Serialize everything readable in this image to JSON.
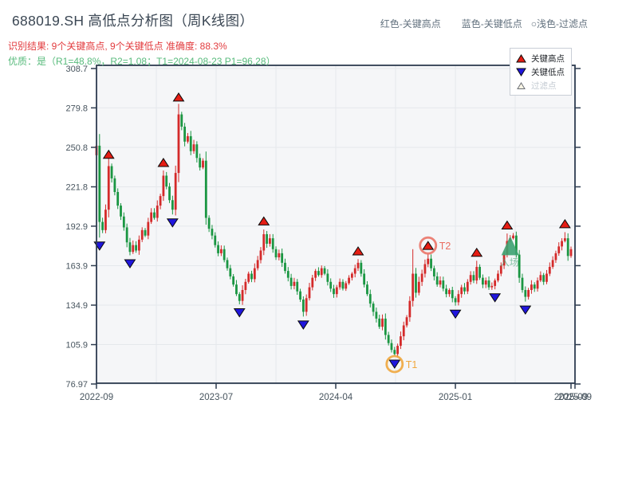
{
  "header": {
    "title": "688019.SH 高低点分析图（周K线图）",
    "subtitle_result": "识别结果: 9个关键高点, 9个关键低点  准确度: 88.3%",
    "subtitle_quality": "优质：是（R1=48.8%，R2=1.08；T1=2024-08-23 P1=96.28）",
    "inline_legend": [
      {
        "label": "红色-关键高点"
      },
      {
        "label": "蓝色-关键低点"
      },
      {
        "label": "○浅色-过滤点"
      }
    ]
  },
  "plot_legend": {
    "items": [
      {
        "label": "关键高点",
        "marker": "up-triangle",
        "fill": "#e51d14",
        "text_color": "#1f2328"
      },
      {
        "label": "关键低点",
        "marker": "down-triangle",
        "fill": "#1f16dd",
        "text_color": "#1f2328"
      },
      {
        "label": "过滤点",
        "marker": "hollow-up-triangle",
        "fill": "#faf5e6",
        "text_color": "#c3cad1"
      }
    ]
  },
  "chart_data": {
    "type": "candlestick",
    "symbol": "688019.SH",
    "period": "weekly",
    "accuracy": "88.3%",
    "y_ticks": [
      {
        "v": 308.7,
        "label": "308.7"
      },
      {
        "v": 279.8,
        "label": "279.8"
      },
      {
        "v": 250.8,
        "label": "250.8"
      },
      {
        "v": 221.8,
        "label": "221.8"
      },
      {
        "v": 192.9,
        "label": "192.9"
      },
      {
        "v": 163.9,
        "label": "163.9"
      },
      {
        "v": 134.9,
        "label": "134.9"
      },
      {
        "v": 105.9,
        "label": "105.9"
      },
      {
        "v": 76.97,
        "label": "76.97"
      }
    ],
    "x_ticks": [
      {
        "pos": 0,
        "label": "2022-09"
      },
      {
        "pos": 39.33,
        "label": "2023-07"
      },
      {
        "pos": 78.66,
        "label": "2024-04"
      },
      {
        "pos": 117.99,
        "label": "2025-01"
      },
      {
        "pos": 156,
        "label": "2025-09"
      },
      {
        "pos": 157.31,
        "label": "2025-09"
      }
    ],
    "x_grid_pos": [
      19.66,
      39.33,
      59.0,
      78.66,
      98.32,
      117.99,
      137.65
    ],
    "first_open": 245,
    "weekly_closes": [
      252,
      196,
      190,
      205,
      237,
      228,
      218,
      208,
      200,
      192,
      181,
      174,
      179,
      175,
      183,
      190,
      186,
      196,
      203,
      199,
      208,
      215,
      230,
      222,
      212,
      205,
      232,
      275,
      266,
      255,
      259,
      248,
      253,
      243,
      236,
      241,
      199,
      191,
      186,
      179,
      173,
      176,
      168,
      162,
      156,
      150,
      143,
      138,
      146,
      152,
      158,
      154,
      162,
      168,
      175,
      187,
      180,
      184,
      176,
      170,
      173,
      166,
      160,
      155,
      149,
      152,
      145,
      139,
      130,
      140,
      148,
      155,
      160,
      157,
      162,
      158,
      152,
      147,
      143,
      148,
      152,
      147,
      151,
      155,
      158,
      162,
      166,
      158,
      150,
      143,
      136,
      130,
      125,
      119,
      125,
      113,
      107,
      102,
      99,
      105,
      112,
      120,
      126,
      138,
      158,
      144,
      152,
      158,
      165,
      169,
      162,
      156,
      150,
      153,
      147,
      143,
      146,
      140,
      137,
      143,
      148,
      145,
      152,
      157,
      153,
      163,
      155,
      150,
      153,
      148,
      149,
      153,
      158,
      164,
      172,
      182,
      184,
      186,
      172,
      155,
      146,
      141,
      146,
      150,
      147,
      153,
      157,
      152,
      158,
      163,
      168,
      173,
      178,
      182,
      184,
      171,
      176
    ],
    "key_high_points": [
      {
        "i": 4,
        "price": 241
      },
      {
        "i": 22,
        "price": 235
      },
      {
        "i": 27,
        "price": 283
      },
      {
        "i": 55,
        "price": 192
      },
      {
        "i": 86,
        "price": 170
      },
      {
        "i": 109,
        "price": 174
      },
      {
        "i": 125,
        "price": 169
      },
      {
        "i": 135,
        "price": 189
      },
      {
        "i": 154,
        "price": 190
      }
    ],
    "key_low_points": [
      {
        "i": 1,
        "price": 183
      },
      {
        "i": 11,
        "price": 170
      },
      {
        "i": 25,
        "price": 200
      },
      {
        "i": 47,
        "price": 134
      },
      {
        "i": 68,
        "price": 125
      },
      {
        "i": 98,
        "price": 96.3
      },
      {
        "i": 118,
        "price": 133
      },
      {
        "i": 131,
        "price": 145
      },
      {
        "i": 141,
        "price": 136
      }
    ],
    "wick_overrides": [
      {
        "i": 0,
        "high": 264
      },
      {
        "i": 104,
        "high": 176
      }
    ],
    "annotations": {
      "t1": {
        "i": 98,
        "price": 96.3,
        "label": "T1",
        "color": "#f0a73d"
      },
      "t2": {
        "i": 109,
        "price": 174,
        "label": "T2",
        "color": "#ea6d60"
      },
      "entry": {
        "i": 136,
        "price": 178,
        "label": "入场",
        "color": "#3da271"
      }
    },
    "colors": {
      "candle_up": "#d42a2a",
      "candle_down": "#1a9642",
      "key_high_marker": "#e51d14",
      "key_low_marker": "#1f16dd",
      "marker_outline": "#0a0a0a",
      "plot_bg": "#f5f6f8",
      "grid": "#e5e8ec",
      "axis_border": "#2e3c50",
      "tick_text": "#47545e"
    }
  }
}
